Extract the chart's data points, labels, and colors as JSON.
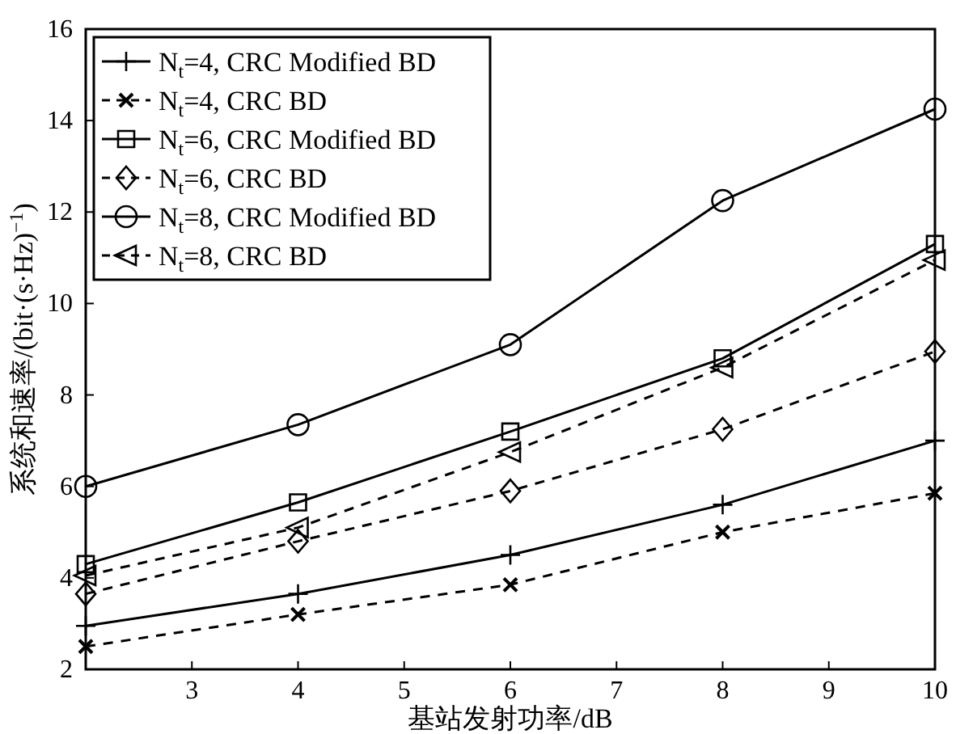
{
  "chart_data": {
    "type": "line",
    "xlabel": "基站发射功率/dB",
    "ylabel": "系统和速率/(bit·(s·Hz)$^{−1}$)",
    "x": [
      2,
      4,
      6,
      8,
      10
    ],
    "xlim": [
      2,
      10
    ],
    "xticks": [
      3,
      4,
      5,
      6,
      7,
      8,
      9,
      10
    ],
    "ylim": [
      2,
      16
    ],
    "yticks": [
      2,
      4,
      6,
      8,
      10,
      12,
      14,
      16
    ],
    "grid": false,
    "legend": "top left",
    "series": [
      {
        "name": "N$_{t}$=4, CRC Modified BD",
        "color": "#000000",
        "marker": "cross",
        "line_style": "solid",
        "values": [
          2.95,
          3.65,
          4.5,
          5.6,
          7.0
        ]
      },
      {
        "name": "N$_{t}$=4, CRC BD",
        "color": "#000000",
        "marker": "x",
        "line_style": "dashed",
        "values": [
          2.5,
          3.2,
          3.85,
          5.0,
          5.85
        ]
      },
      {
        "name": "N$_{t}$=6, CRC Modified BD",
        "color": "#000000",
        "marker": "square",
        "line_style": "solid",
        "values": [
          4.3,
          5.65,
          7.2,
          8.8,
          11.3
        ]
      },
      {
        "name": "N$_{t}$=6, CRC BD",
        "color": "#000000",
        "marker": "diamond",
        "line_style": "dashed",
        "values": [
          3.65,
          4.8,
          5.9,
          7.25,
          8.95
        ]
      },
      {
        "name": "N$_{t}$=8, CRC Modified BD",
        "color": "#000000",
        "marker": "circle",
        "line_style": "solid",
        "values": [
          6.0,
          7.35,
          9.1,
          12.25,
          14.25
        ]
      },
      {
        "name": "N$_{t}$=8, CRC BD",
        "color": "#000000",
        "marker": "triangle",
        "line_style": "dashed",
        "values": [
          4.05,
          5.1,
          6.75,
          8.6,
          10.95
        ]
      }
    ]
  }
}
